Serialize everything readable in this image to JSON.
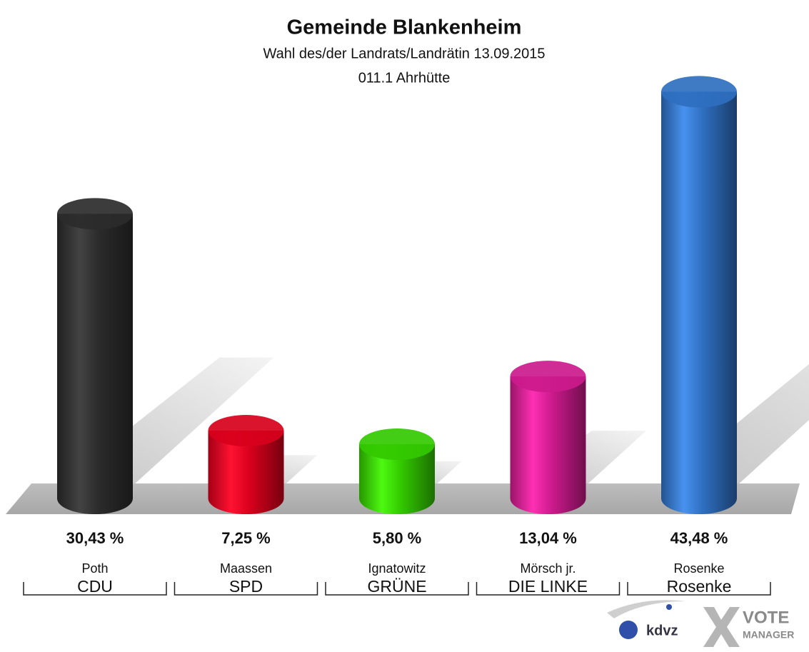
{
  "chart_data": {
    "type": "bar",
    "title": "Gemeinde Blankenheim",
    "subtitle": [
      "Wahl des/der Landrats/Landrätin 13.09.2015",
      "011.1 Ahrhütte"
    ],
    "categories": [
      "Poth",
      "Maassen",
      "Ignatowitz",
      "Mörsch jr.",
      "Rosenke"
    ],
    "groups": [
      "CDU",
      "SPD",
      "GRÜNE",
      "DIE LINKE",
      "Rosenke"
    ],
    "values": [
      30.43,
      7.25,
      5.8,
      13.04,
      43.48
    ],
    "value_labels": [
      "30,43 %",
      "7,25 %",
      "5,80 %",
      "13,04 %",
      "43,48 %"
    ],
    "colors": [
      "#2b2b2b",
      "#d8001c",
      "#33c900",
      "#cc1a8c",
      "#2f6fc0"
    ]
  },
  "logo": {
    "left": "kdvz",
    "right": [
      "VOTE",
      "MANAGER"
    ]
  }
}
